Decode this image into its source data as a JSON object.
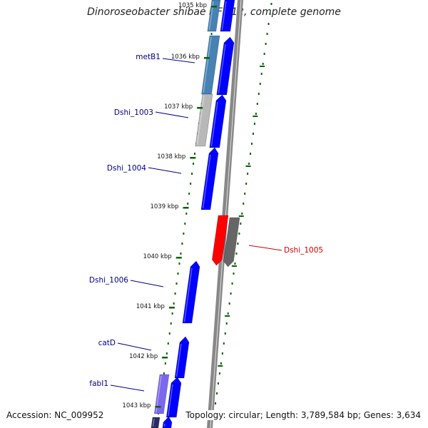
{
  "title": "Dinoroseobacter shibae DFL 12, complete genome",
  "footer": {
    "accession": "Accession: NC_009952",
    "topology": "Topology: circular; Length: 3,789,584 bp; Genes: 3,634"
  },
  "ticks": [
    "1035 kbp",
    "1036 kbp",
    "1037 kbp",
    "1038 kbp",
    "1039 kbp",
    "1040 kbp",
    "1041 kbp",
    "1042 kbp",
    "1043 kbp"
  ],
  "gene_labels": [
    {
      "name": "metB1",
      "color": "#00008b"
    },
    {
      "name": "Dshi_1003",
      "color": "#00008b"
    },
    {
      "name": "Dshi_1004",
      "color": "#00008b"
    },
    {
      "name": "Dshi_1005",
      "color": "#cc0000"
    },
    {
      "name": "Dshi_1006",
      "color": "#00008b"
    },
    {
      "name": "catD",
      "color": "#00008b"
    },
    {
      "name": "fabI1",
      "color": "#00008b"
    }
  ],
  "colors": {
    "cds": "#0000ff",
    "gene_steelblue": "#4682b4",
    "gene_gray": "#b8b8b8",
    "gene_dark": "#666666",
    "gene_red": "#ff0000",
    "gene_purple": "#7b68ee",
    "tick_green": "#006400",
    "backbone": "#888888"
  }
}
